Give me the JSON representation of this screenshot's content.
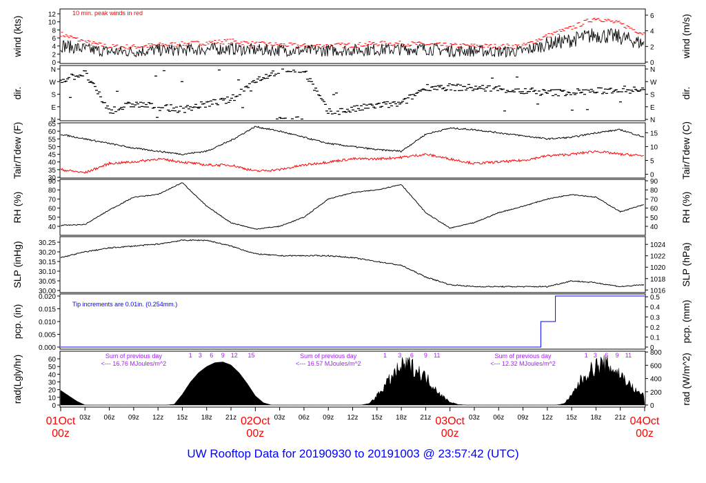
{
  "title": "UW Rooftop Data for 20190930  to  20191003 @ 23:57:42  (UTC)",
  "chart_data": [
    {
      "type": "line",
      "id": "wind",
      "ylabel": "wind (kts)",
      "ylabel_right": "wind (m/s)",
      "ylim": [
        0,
        12
      ],
      "yticks": [
        0,
        2,
        4,
        6,
        8,
        10,
        12
      ],
      "yticks_right": [
        0,
        2,
        4,
        6
      ],
      "annotation": "10 min. peak winds in red",
      "x_hours": [
        0,
        3,
        6,
        9,
        12,
        15,
        18,
        21,
        24,
        27,
        30,
        33,
        36,
        39,
        42,
        45,
        48,
        51,
        54,
        57,
        60,
        63,
        66,
        69,
        72
      ],
      "series": [
        {
          "name": "wind",
          "color": "#000000",
          "values": [
            4.2,
            3.2,
            2.6,
            2.6,
            3.0,
            3.0,
            3.2,
            3.3,
            3.0,
            3.0,
            2.8,
            2.9,
            3.0,
            3.1,
            3.2,
            3.3,
            2.8,
            2.8,
            2.6,
            2.7,
            4.5,
            5.5,
            6.8,
            6.2,
            4.5
          ]
        },
        {
          "name": "10 min. peak",
          "color": "#ff0000",
          "values": [
            7.0,
            5.0,
            3.8,
            3.8,
            4.2,
            4.5,
            4.8,
            5.2,
            4.5,
            4.3,
            4.0,
            4.1,
            4.2,
            4.6,
            4.6,
            4.4,
            4.1,
            4.0,
            3.9,
            4.0,
            6.5,
            8.5,
            11.0,
            9.5,
            7.0
          ]
        }
      ]
    },
    {
      "type": "scatter",
      "id": "dir",
      "ylabel": "dir.",
      "ylabel_right": "dir.",
      "ylim": [
        0,
        360
      ],
      "yticks": [
        "N",
        "E",
        "S",
        "W",
        "N"
      ],
      "ytick_values": [
        0,
        90,
        180,
        270,
        360
      ],
      "x_hours": [
        0,
        3,
        6,
        9,
        12,
        15,
        18,
        21,
        24,
        27,
        30,
        33,
        36,
        39,
        42,
        45,
        48,
        51,
        54,
        57,
        60,
        63,
        66,
        69,
        72
      ],
      "values": [
        280,
        330,
        60,
        110,
        90,
        70,
        110,
        140,
        280,
        350,
        355,
        50,
        70,
        100,
        110,
        230,
        230,
        225,
        220,
        200,
        190,
        195,
        200,
        215,
        205
      ]
    },
    {
      "type": "line",
      "id": "tair",
      "ylabel": "Tair/Tdew (F)",
      "ylabel_right": "Tair/Tdew (C)",
      "ylim": [
        30,
        65
      ],
      "yticks": [
        30,
        35,
        40,
        45,
        50,
        55,
        60,
        65
      ],
      "yticks_right": [
        0,
        5,
        10,
        15
      ],
      "x_hours": [
        0,
        3,
        6,
        9,
        12,
        15,
        18,
        21,
        24,
        27,
        30,
        33,
        36,
        39,
        42,
        45,
        48,
        51,
        54,
        57,
        60,
        63,
        66,
        69,
        72
      ],
      "series": [
        {
          "name": "Tair",
          "color": "#000000",
          "values": [
            58,
            55,
            52,
            49,
            47,
            45,
            47,
            54,
            63,
            60,
            56,
            52,
            50,
            48,
            47,
            58,
            62,
            61,
            59,
            57,
            55,
            56,
            59,
            61,
            56
          ]
        },
        {
          "name": "Tdew",
          "color": "#ff0000",
          "values": [
            35,
            33,
            39,
            40,
            42,
            40,
            38,
            38,
            34,
            35,
            38,
            40,
            42,
            42,
            43,
            45,
            42,
            39,
            40,
            41,
            44,
            45,
            47,
            45,
            44
          ]
        }
      ]
    },
    {
      "type": "line",
      "id": "rh",
      "ylabel": "RH (%)",
      "ylabel_right": "RH (%)",
      "ylim": [
        40,
        90
      ],
      "yticks": [
        40,
        50,
        60,
        70,
        80,
        90
      ],
      "yticks_right": [
        40,
        50,
        60,
        70,
        80,
        90
      ],
      "x_hours": [
        0,
        3,
        6,
        9,
        12,
        15,
        18,
        21,
        24,
        27,
        30,
        33,
        36,
        39,
        42,
        45,
        48,
        51,
        54,
        57,
        60,
        63,
        66,
        69,
        72
      ],
      "values": [
        41,
        42,
        58,
        72,
        75,
        88,
        62,
        44,
        37,
        40,
        50,
        70,
        77,
        80,
        86,
        55,
        38,
        44,
        55,
        62,
        70,
        75,
        72,
        56,
        64
      ]
    },
    {
      "type": "line",
      "id": "slp",
      "ylabel": "SLP (inHg)",
      "ylabel_right": "SLP (hPa)",
      "ylim": [
        30.0,
        30.25
      ],
      "yticks": [
        "30.00",
        "30.05",
        "30.10",
        "30.15",
        "30.20",
        "30.25"
      ],
      "yticks_right": [
        1016,
        1018,
        1020,
        1022,
        1024
      ],
      "x_hours": [
        0,
        3,
        6,
        9,
        12,
        15,
        18,
        21,
        24,
        27,
        30,
        33,
        36,
        39,
        42,
        45,
        48,
        51,
        54,
        57,
        60,
        63,
        66,
        69,
        72
      ],
      "values": [
        30.17,
        30.2,
        30.22,
        30.23,
        30.24,
        30.26,
        30.26,
        30.23,
        30.19,
        30.18,
        30.18,
        30.18,
        30.17,
        30.15,
        30.13,
        30.07,
        30.03,
        30.02,
        30.02,
        30.02,
        30.02,
        30.05,
        30.04,
        30.02,
        30.03
      ]
    },
    {
      "type": "line",
      "id": "pcp",
      "ylabel": "pcp. (in)",
      "ylabel_right": "pcp. (mm)",
      "ylim": [
        0,
        0.02
      ],
      "yticks": [
        "0.000",
        "0.005",
        "0.010",
        "0.015",
        "0.020"
      ],
      "yticks_right": [
        "0",
        "0.1",
        "0.2",
        "0.3",
        "0.4",
        "0.5"
      ],
      "annotation": "Tip increments are 0.01in. (0.254mm.)",
      "x_hours": [
        0,
        59.2,
        59.2,
        61.0,
        61.0,
        72
      ],
      "values": [
        0,
        0,
        0.01,
        0.01,
        0.02,
        0.02
      ]
    },
    {
      "type": "area",
      "id": "rad",
      "ylabel": "rad(Lgly/hr)",
      "ylabel_right": "rad (W/m^2)",
      "ylim": [
        0,
        60
      ],
      "yticks": [
        0,
        10,
        20,
        30,
        40,
        50,
        60
      ],
      "yticks_right": [
        0,
        200,
        400,
        600,
        800
      ],
      "values_hourly": [
        19,
        12,
        5,
        0,
        0,
        0,
        0,
        0,
        0,
        0,
        0,
        0,
        0,
        0,
        1,
        14,
        30,
        42,
        50,
        55,
        56,
        52,
        42,
        28,
        12,
        3,
        0,
        0,
        0,
        0,
        0,
        0,
        0,
        0,
        0,
        0,
        0,
        0,
        2,
        15,
        32,
        48,
        62,
        65,
        56,
        45,
        30,
        15,
        5,
        1,
        0,
        0,
        0,
        0,
        0,
        0,
        0,
        0,
        0,
        0,
        0,
        0,
        2,
        15,
        38,
        52,
        63,
        66,
        60,
        50,
        35,
        22,
        16
      ],
      "daily_sums": [
        {
          "line1": "Sum of previous day",
          "line2": "<--- 16.76 MJoules/m^2",
          "hour": 9
        },
        {
          "line1": "Sum of previous day",
          "line2": "<--- 16.57 MJoules/m^2",
          "hour": 33
        },
        {
          "line1": "Sum of previous day",
          "line2": "<--- 12.32 MJoules/m^2",
          "hour": 57
        }
      ],
      "uv_labels": [
        {
          "hour": 16.0,
          "text": "1"
        },
        {
          "hour": 17.2,
          "text": "3"
        },
        {
          "hour": 18.6,
          "text": "6"
        },
        {
          "hour": 20.0,
          "text": "9"
        },
        {
          "hour": 21.4,
          "text": "12"
        },
        {
          "hour": 23.5,
          "text": "15"
        },
        {
          "hour": 40.0,
          "text": "1"
        },
        {
          "hour": 41.8,
          "text": "3"
        },
        {
          "hour": 43.3,
          "text": "6"
        },
        {
          "hour": 45.0,
          "text": "9"
        },
        {
          "hour": 46.4,
          "text": "11"
        },
        {
          "hour": 64.8,
          "text": "1"
        },
        {
          "hour": 65.9,
          "text": "3"
        },
        {
          "hour": 67.3,
          "text": "6"
        },
        {
          "hour": 68.6,
          "text": "9"
        },
        {
          "hour": 70.0,
          "text": "11"
        }
      ]
    }
  ],
  "x_axis": {
    "ticks": [
      {
        "hour": 3,
        "label": "03z"
      },
      {
        "hour": 6,
        "label": "06z"
      },
      {
        "hour": 9,
        "label": "09z"
      },
      {
        "hour": 12,
        "label": "12z"
      },
      {
        "hour": 15,
        "label": "15z"
      },
      {
        "hour": 18,
        "label": "18z"
      },
      {
        "hour": 21,
        "label": "21z"
      },
      {
        "hour": 27,
        "label": "03z"
      },
      {
        "hour": 30,
        "label": "06z"
      },
      {
        "hour": 33,
        "label": "09z"
      },
      {
        "hour": 36,
        "label": "12z"
      },
      {
        "hour": 39,
        "label": "15z"
      },
      {
        "hour": 42,
        "label": "18z"
      },
      {
        "hour": 45,
        "label": "21z"
      },
      {
        "hour": 51,
        "label": "03z"
      },
      {
        "hour": 54,
        "label": "06z"
      },
      {
        "hour": 57,
        "label": "09z"
      },
      {
        "hour": 60,
        "label": "12z"
      },
      {
        "hour": 63,
        "label": "15z"
      },
      {
        "hour": 66,
        "label": "18z"
      },
      {
        "hour": 69,
        "label": "21z"
      }
    ],
    "days": [
      {
        "hour": 0,
        "date": "01Oct",
        "time": "00z"
      },
      {
        "hour": 24,
        "date": "02Oct",
        "time": "00z"
      },
      {
        "hour": 48,
        "date": "03Oct",
        "time": "00z"
      },
      {
        "hour": 72,
        "date": "04Oct",
        "time": "00z"
      }
    ]
  },
  "colors": {
    "peak": "#ff0000",
    "dew": "#ff0000",
    "pcp": "#0000ff",
    "note_rad": "#a020f0",
    "title": "#0000ff",
    "day_label": "#ff0000"
  }
}
